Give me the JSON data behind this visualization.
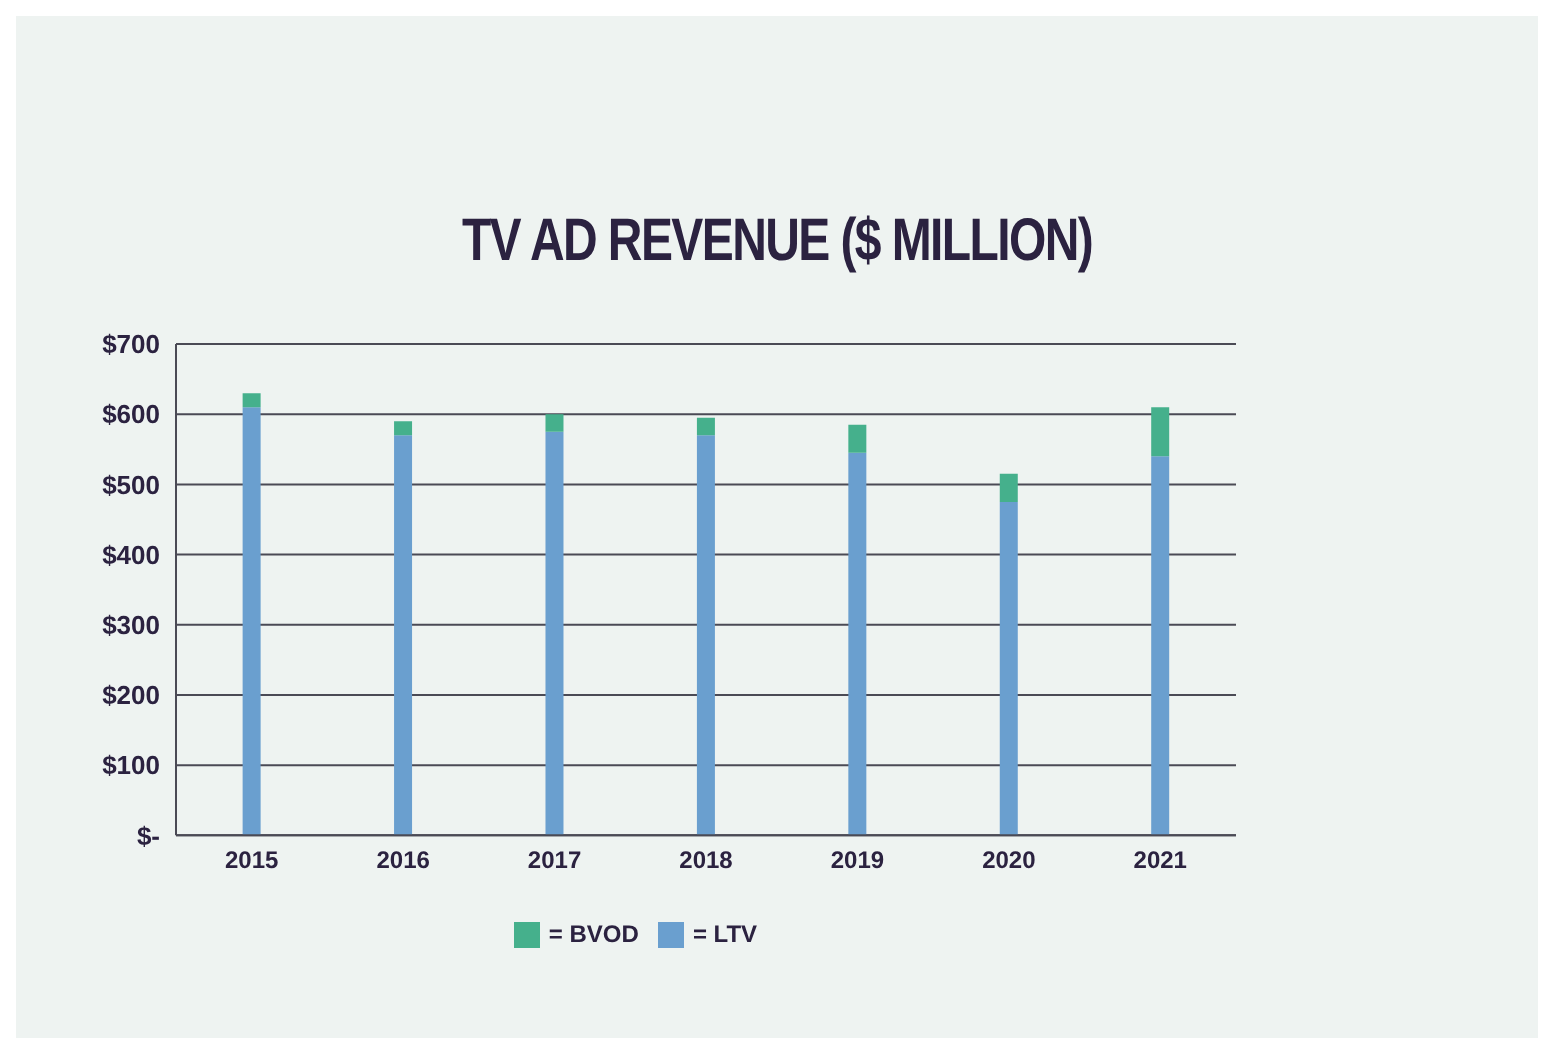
{
  "chart_data": {
    "type": "bar",
    "title": "TV AD REVENUE ($ MILLION)",
    "stacked": true,
    "categories": [
      "2015",
      "2016",
      "2017",
      "2018",
      "2019",
      "2020",
      "2021"
    ],
    "series": [
      {
        "name": "= LTV",
        "color": "#6a9fcf",
        "values": [
          610,
          570,
          575,
          570,
          545,
          475,
          540
        ]
      },
      {
        "name": "= BVOD",
        "color": "#45b08c",
        "values": [
          20,
          20,
          25,
          25,
          40,
          40,
          70
        ]
      }
    ],
    "ylim": [
      0,
      700
    ],
    "yticks": [
      {
        "value": 0,
        "label": "$-"
      },
      {
        "value": 100,
        "label": "$100"
      },
      {
        "value": 200,
        "label": "$200"
      },
      {
        "value": 300,
        "label": "$300"
      },
      {
        "value": 400,
        "label": "$400"
      },
      {
        "value": 500,
        "label": "$500"
      },
      {
        "value": 600,
        "label": "$600"
      },
      {
        "value": 700,
        "label": "$700"
      }
    ],
    "grid": "y",
    "legend": "bottom"
  }
}
